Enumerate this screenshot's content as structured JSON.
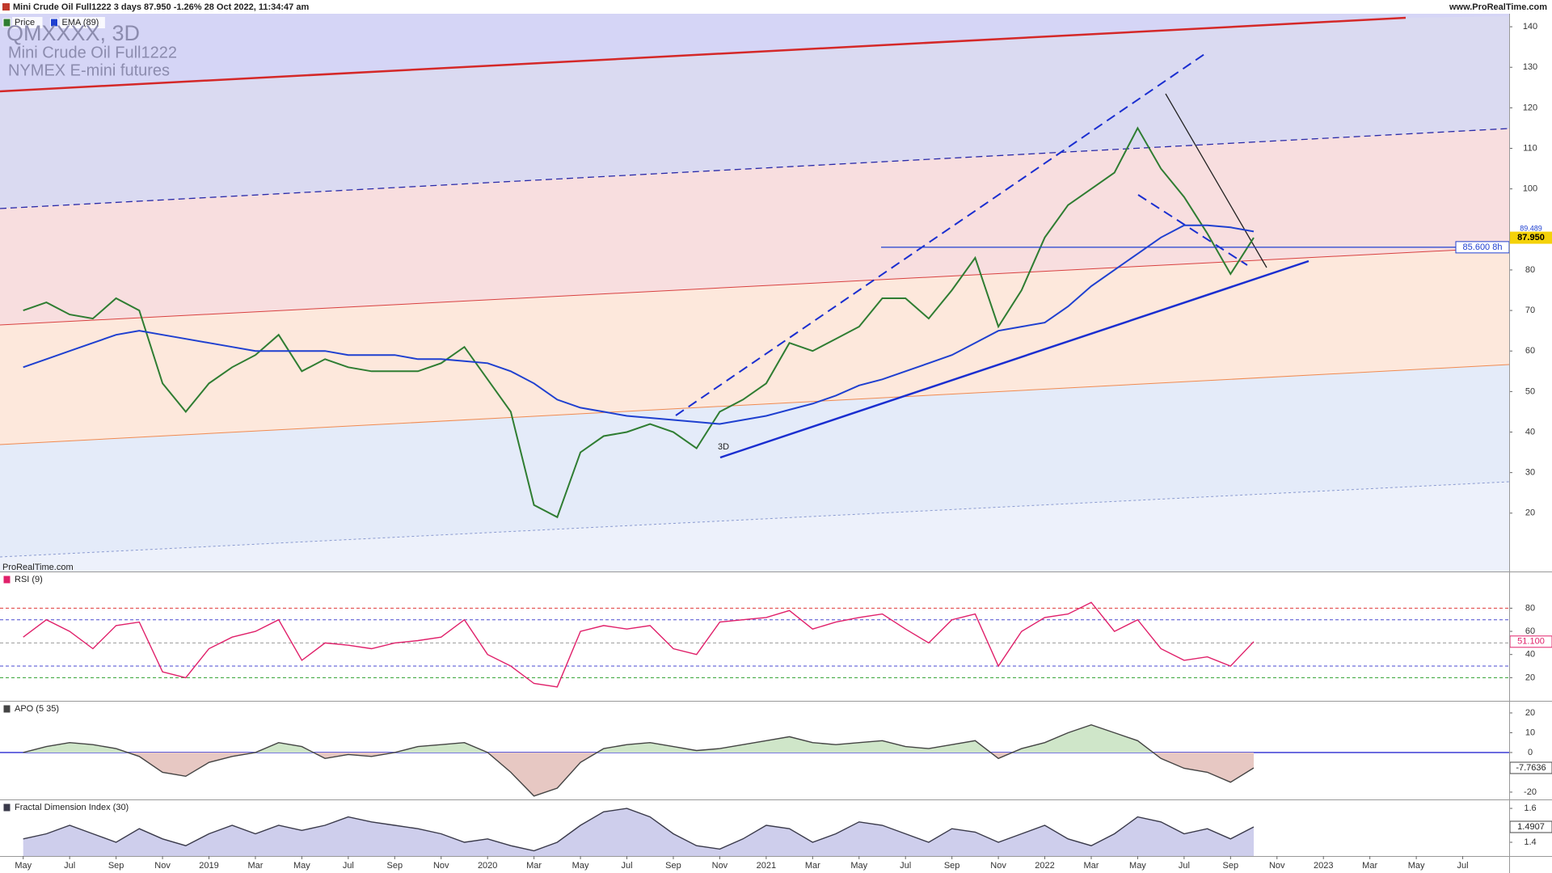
{
  "chart_data": {
    "type": "line",
    "info": "Mini Crude Oil Full1222 3 days 87.950 -1.26% 28 Oct 2022, 11:34:47 am",
    "site": "www.ProRealTime.com",
    "watermark": "ProRealTime.com",
    "x": [
      "2018-05",
      "2018-06",
      "2018-07",
      "2018-08",
      "2018-09",
      "2018-10",
      "2018-11",
      "2018-12",
      "2019-01",
      "2019-02",
      "2019-03",
      "2019-04",
      "2019-05",
      "2019-06",
      "2019-07",
      "2019-08",
      "2019-09",
      "2019-10",
      "2019-11",
      "2019-12",
      "2020-01",
      "2020-02",
      "2020-03",
      "2020-04",
      "2020-05",
      "2020-06",
      "2020-07",
      "2020-08",
      "2020-09",
      "2020-10",
      "2020-11",
      "2020-12",
      "2021-01",
      "2021-02",
      "2021-03",
      "2021-04",
      "2021-05",
      "2021-06",
      "2021-07",
      "2021-08",
      "2021-09",
      "2021-10",
      "2021-11",
      "2021-12",
      "2022-01",
      "2022-02",
      "2022-03",
      "2022-04",
      "2022-05",
      "2022-06",
      "2022-07",
      "2022-08",
      "2022-09",
      "2022-10"
    ],
    "xlim": [
      "2018-04",
      "2023-09"
    ],
    "xticks": [
      {
        "value": "2018-05",
        "label": "May"
      },
      {
        "value": "2018-07",
        "label": "Jul"
      },
      {
        "value": "2018-09",
        "label": "Sep"
      },
      {
        "value": "2018-11",
        "label": "Nov"
      },
      {
        "value": "2019-01",
        "label": "2019"
      },
      {
        "value": "2019-03",
        "label": "Mar"
      },
      {
        "value": "2019-05",
        "label": "May"
      },
      {
        "value": "2019-07",
        "label": "Jul"
      },
      {
        "value": "2019-09",
        "label": "Sep"
      },
      {
        "value": "2019-11",
        "label": "Nov"
      },
      {
        "value": "2020-01",
        "label": "2020"
      },
      {
        "value": "2020-03",
        "label": "Mar"
      },
      {
        "value": "2020-05",
        "label": "May"
      },
      {
        "value": "2020-07",
        "label": "Jul"
      },
      {
        "value": "2020-09",
        "label": "Sep"
      },
      {
        "value": "2020-11",
        "label": "Nov"
      },
      {
        "value": "2021-01",
        "label": "2021"
      },
      {
        "value": "2021-03",
        "label": "Mar"
      },
      {
        "value": "2021-05",
        "label": "May"
      },
      {
        "value": "2021-07",
        "label": "Jul"
      },
      {
        "value": "2021-09",
        "label": "Sep"
      },
      {
        "value": "2021-11",
        "label": "Nov"
      },
      {
        "value": "2022-01",
        "label": "2022"
      },
      {
        "value": "2022-03",
        "label": "Mar"
      },
      {
        "value": "2022-05",
        "label": "May"
      },
      {
        "value": "2022-07",
        "label": "Jul"
      },
      {
        "value": "2022-09",
        "label": "Sep"
      },
      {
        "value": "2022-11",
        "label": "Nov"
      },
      {
        "value": "2023-01",
        "label": "2023"
      },
      {
        "value": "2023-03",
        "label": "Mar"
      },
      {
        "value": "2023-05",
        "label": "May"
      },
      {
        "value": "2023-07",
        "label": "Jul"
      }
    ],
    "panels": [
      {
        "type": "line",
        "title": "QMXXXX, 3D",
        "subtitle": "Mini Crude Oil Full1222",
        "exchange": "NYMEX E-mini futures",
        "annotation": "3D",
        "ylim": [
          5.6,
          146.6
        ],
        "yticks": [
          20,
          30,
          40,
          50,
          60,
          70,
          80,
          100,
          110,
          120,
          130,
          140
        ],
        "series": [
          {
            "name": "Price",
            "color": "#2f7d32",
            "values": [
              70,
              72,
              69,
              68,
              73,
              70,
              52,
              45,
              52,
              56,
              59,
              64,
              55,
              58,
              56,
              55,
              55,
              55,
              57,
              61,
              53,
              45,
              22,
              19,
              35,
              39,
              40,
              42,
              40,
              36,
              45,
              48,
              52,
              62,
              60,
              63,
              66,
              73,
              73,
              68,
              75,
              83,
              66,
              75,
              88,
              96,
              100,
              104,
              115,
              105,
              98,
              89,
              79,
              87.95
            ]
          },
          {
            "name": "EMA (89)",
            "color": "#1f40d0",
            "values": [
              56,
              58,
              60,
              62,
              64,
              65,
              64,
              63,
              62,
              61,
              60,
              60,
              60,
              60,
              59,
              59,
              59,
              58,
              58,
              57.5,
              57,
              55,
              52,
              48,
              46,
              45,
              44,
              43.5,
              43,
              42.5,
              42,
              43,
              44,
              45.5,
              47,
              49,
              51.5,
              53,
              55,
              57,
              59,
              62,
              65,
              66,
              67,
              71,
              76,
              80,
              84,
              88,
              91,
              91,
              90.5,
              89.489
            ]
          }
        ],
        "markers": [
          {
            "value": 87.95,
            "label": "87.950"
          },
          89.489,
          {
            "value": 85.6,
            "label": "85.600 8h"
          }
        ]
      },
      {
        "type": "line",
        "ylim": [
          0,
          111
        ],
        "yticks": [
          20,
          40,
          60,
          80
        ],
        "series": [
          {
            "name": "RSI (9)",
            "color": "#e0206a",
            "values": [
              55,
              70,
              60,
              45,
              65,
              68,
              25,
              20,
              45,
              55,
              60,
              70,
              35,
              50,
              48,
              45,
              50,
              52,
              55,
              70,
              40,
              30,
              15,
              12,
              60,
              65,
              62,
              65,
              45,
              40,
              68,
              70,
              72,
              78,
              62,
              68,
              72,
              75,
              62,
              50,
              70,
              75,
              30,
              60,
              72,
              75,
              85,
              60,
              70,
              45,
              35,
              38,
              30,
              51.1
            ]
          }
        ],
        "levels": [
          {
            "value": 80,
            "color": "#e03a3a"
          },
          {
            "value": 70,
            "color": "#4a4ad0"
          },
          {
            "value": 50,
            "color": "#9a9a9a"
          },
          {
            "value": 30,
            "color": "#4a4ad0"
          },
          {
            "value": 20,
            "color": "#2ea02e"
          }
        ],
        "markers": [
          {
            "value": 51.1,
            "label": "51.100"
          }
        ]
      },
      {
        "type": "area",
        "ylim": [
          -23.7,
          25.7
        ],
        "yticks": [
          20,
          10,
          0,
          -20
        ],
        "series": [
          {
            "name": "APO (5 35)",
            "color": "#444444",
            "fill": "#cfe6c9",
            "fill_negative": "#e7c8c3",
            "values": [
              0,
              3,
              5,
              4,
              2,
              -2,
              -10,
              -12,
              -5,
              -2,
              0,
              5,
              3,
              -3,
              -1,
              -2,
              0,
              3,
              4,
              5,
              0,
              -10,
              -22,
              -18,
              -5,
              2,
              4,
              5,
              3,
              1,
              2,
              4,
              6,
              8,
              5,
              4,
              5,
              6,
              3,
              2,
              4,
              6,
              -3,
              2,
              5,
              10,
              14,
              10,
              6,
              -3,
              -8,
              -10,
              -15,
              -7.7636
            ]
          }
        ],
        "levels": [
          {
            "value": 0,
            "color": "#2a2ad0"
          }
        ],
        "markers": [
          -7.7636
        ]
      },
      {
        "type": "area",
        "ylim": [
          1.319,
          1.648
        ],
        "yticks": [
          1.6,
          1.4
        ],
        "series": [
          {
            "name": "Fractal Dimension Index (30)",
            "color": "#3a3a4a",
            "fill": "#c9c9ea",
            "values": [
              1.42,
              1.45,
              1.5,
              1.45,
              1.4,
              1.48,
              1.42,
              1.38,
              1.45,
              1.5,
              1.45,
              1.5,
              1.47,
              1.5,
              1.55,
              1.52,
              1.5,
              1.48,
              1.45,
              1.4,
              1.42,
              1.38,
              1.35,
              1.4,
              1.5,
              1.58,
              1.6,
              1.55,
              1.45,
              1.38,
              1.36,
              1.42,
              1.5,
              1.48,
              1.4,
              1.45,
              1.52,
              1.5,
              1.45,
              1.4,
              1.48,
              1.46,
              1.4,
              1.45,
              1.5,
              1.42,
              1.38,
              1.45,
              1.55,
              1.52,
              1.45,
              1.48,
              1.42,
              1.4907
            ]
          }
        ],
        "markers": [
          1.4907
        ]
      }
    ]
  }
}
